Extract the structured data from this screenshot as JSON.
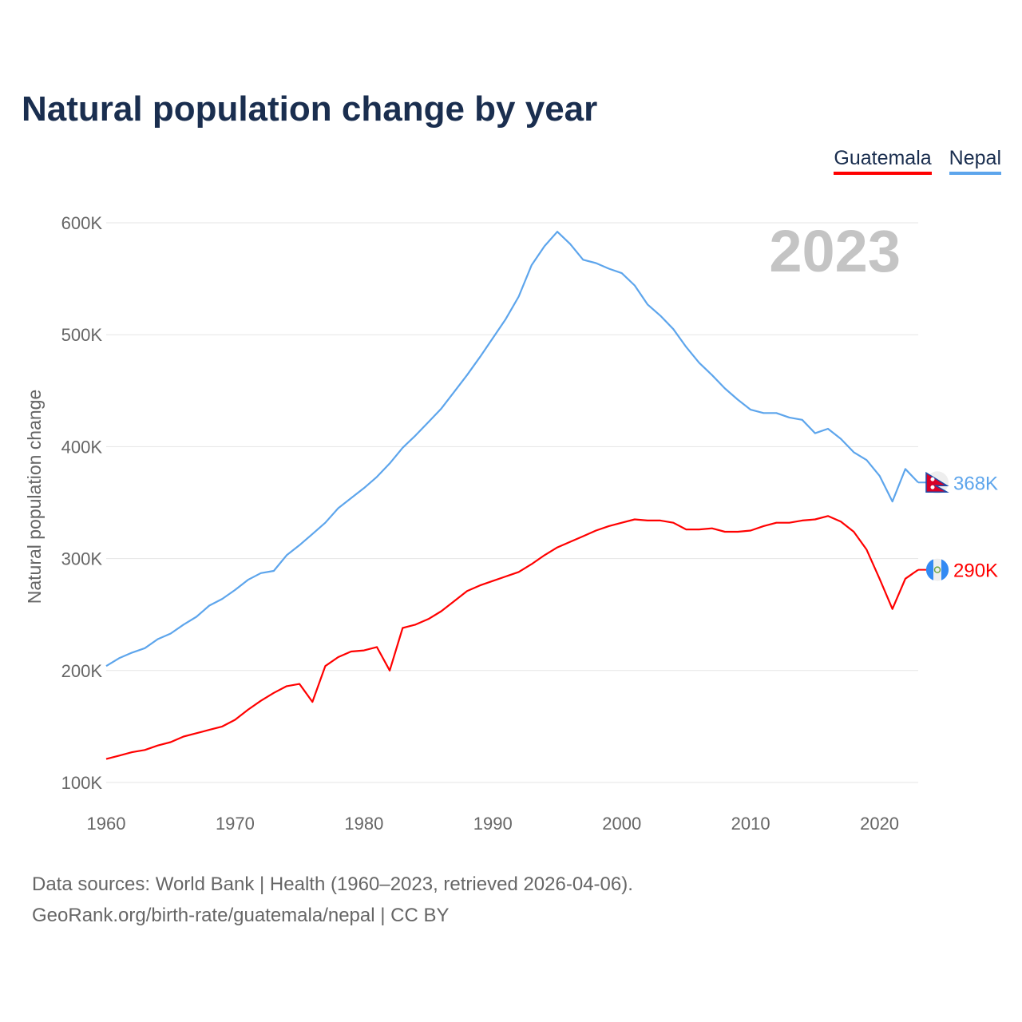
{
  "chart_data": {
    "type": "line",
    "title": "Natural population change by year",
    "xlabel": "",
    "ylabel": "Natural population change",
    "xlim": [
      1960,
      2023
    ],
    "ylim": [
      100000,
      600000
    ],
    "x_ticks": [
      1960,
      1970,
      1980,
      1990,
      2000,
      2010,
      2020
    ],
    "x_tick_labels": [
      "1960",
      "1970",
      "1980",
      "1990",
      "2000",
      "2010",
      "2020"
    ],
    "y_ticks": [
      100000,
      200000,
      300000,
      400000,
      500000,
      600000
    ],
    "y_tick_labels": [
      "100K",
      "200K",
      "300K",
      "400K",
      "500K",
      "600K"
    ],
    "grid": true,
    "legend_position": "top-right",
    "year_watermark": "2023",
    "x": [
      1960,
      1961,
      1962,
      1963,
      1964,
      1965,
      1966,
      1967,
      1968,
      1969,
      1970,
      1971,
      1972,
      1973,
      1974,
      1975,
      1976,
      1977,
      1978,
      1979,
      1980,
      1981,
      1982,
      1983,
      1984,
      1985,
      1986,
      1987,
      1988,
      1989,
      1990,
      1991,
      1992,
      1993,
      1994,
      1995,
      1996,
      1997,
      1998,
      1999,
      2000,
      2001,
      2002,
      2003,
      2004,
      2005,
      2006,
      2007,
      2008,
      2009,
      2010,
      2011,
      2012,
      2013,
      2014,
      2015,
      2016,
      2017,
      2018,
      2019,
      2020,
      2021,
      2022,
      2023
    ],
    "series": [
      {
        "name": "Guatemala",
        "color": "#ff0000",
        "end_label": "290K",
        "flag": "guatemala-flag",
        "values": [
          121000,
          124000,
          127000,
          129000,
          133000,
          136000,
          141000,
          144000,
          147000,
          150000,
          156000,
          165000,
          173000,
          180000,
          186000,
          188000,
          172000,
          204000,
          212000,
          217000,
          218000,
          221000,
          200000,
          238000,
          241000,
          246000,
          253000,
          262000,
          271000,
          276000,
          280000,
          284000,
          288000,
          295000,
          303000,
          310000,
          315000,
          320000,
          325000,
          329000,
          332000,
          335000,
          334000,
          334000,
          332000,
          326000,
          326000,
          327000,
          324000,
          324000,
          325000,
          329000,
          332000,
          332000,
          334000,
          335000,
          338000,
          333000,
          324000,
          308000,
          282000,
          255000,
          282000,
          290000
        ]
      },
      {
        "name": "Nepal",
        "color": "#5da5ec",
        "end_label": "368K",
        "flag": "nepal-flag",
        "values": [
          204000,
          211000,
          216000,
          220000,
          228000,
          233000,
          241000,
          248000,
          258000,
          264000,
          272000,
          281000,
          287000,
          289000,
          303000,
          312000,
          322000,
          332000,
          345000,
          354000,
          363000,
          373000,
          385000,
          399000,
          410000,
          422000,
          434000,
          449000,
          464000,
          480000,
          497000,
          514000,
          534000,
          562000,
          579000,
          592000,
          581000,
          567000,
          564000,
          559000,
          555000,
          544000,
          527000,
          517000,
          505000,
          489000,
          475000,
          464000,
          452000,
          442000,
          433000,
          430000,
          430000,
          426000,
          424000,
          412000,
          416000,
          407000,
          395000,
          388000,
          374000,
          351000,
          380000,
          368000
        ]
      }
    ]
  },
  "footer": {
    "line1": "Data sources: World Bank | Health (1960–2023, retrieved 2026-04-06).",
    "line2": "GeoRank.org/birth-rate/guatemala/nepal | CC BY"
  }
}
